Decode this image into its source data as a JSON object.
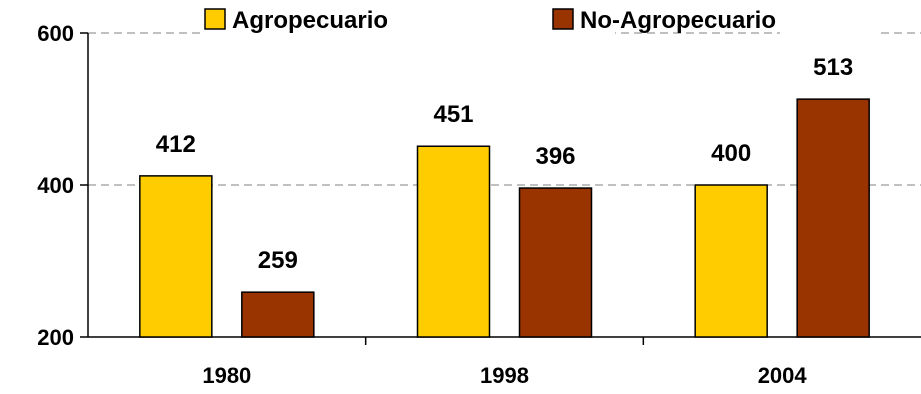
{
  "chart_data": {
    "type": "bar",
    "categories": [
      "1980",
      "1998",
      "2004"
    ],
    "series": [
      {
        "name": "Agropecuario",
        "values": [
          412,
          451,
          400
        ],
        "color": "#FFCC00"
      },
      {
        "name": "No-Agropecuario",
        "values": [
          259,
          396,
          513
        ],
        "color": "#993300"
      }
    ],
    "ylim": [
      200,
      600
    ],
    "yticks": [
      200,
      400,
      600
    ],
    "grid": "dashed horizontal gridlines at 400 and 600",
    "legend_position": "top",
    "title": "",
    "xlabel": "",
    "ylabel": ""
  }
}
